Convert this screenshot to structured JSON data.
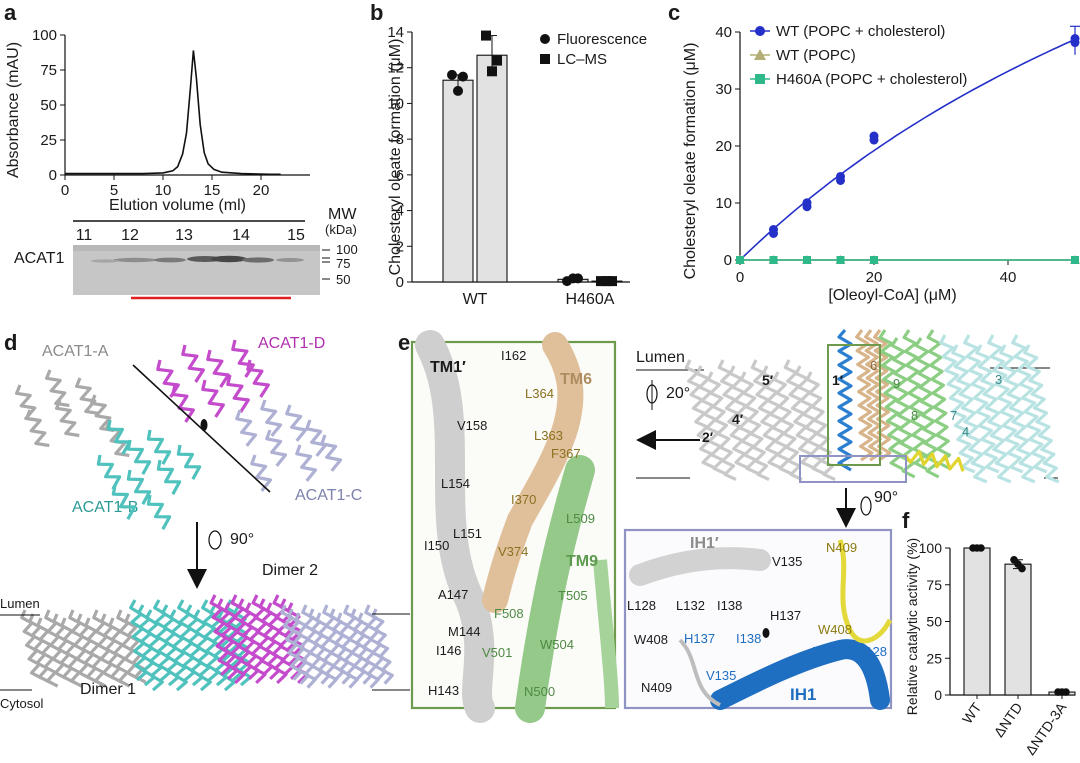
{
  "panels": {
    "a": {
      "letter": "a",
      "ylabel": "Absorbance (mAU)",
      "xlabel": "Elution volume (ml)",
      "gel_label": "ACAT1",
      "mw_title_1": "MW",
      "mw_title_2": "(kDa)",
      "mw_marks": [
        "100",
        "75",
        "50"
      ],
      "fractions": [
        "11",
        "12",
        "13",
        "14",
        "15"
      ]
    },
    "b": {
      "letter": "b"
    },
    "c": {
      "letter": "c"
    },
    "d": {
      "letter": "d",
      "labels": [
        "ACAT1-A",
        "ACAT1-D",
        "ACAT1-B",
        "ACAT1-C",
        "Dimer 2",
        "Dimer 1",
        "Lumen",
        "Cytosol"
      ],
      "rotation": "90°"
    },
    "e": {
      "letter": "e",
      "box1": {
        "titles": [
          "TM1′",
          "TM6",
          "TM9"
        ],
        "residues_gray": [
          "I162",
          "V158",
          "L154",
          "L151",
          "I150",
          "A147",
          "M144",
          "I146",
          "H143"
        ],
        "residues_tan": [
          "L364",
          "L363",
          "F367",
          "I370",
          "V374"
        ],
        "residues_green": [
          "L509",
          "T505",
          "F508",
          "V501",
          "W504",
          "N500"
        ]
      },
      "overview": {
        "lumen": "Lumen",
        "rotation": "20°",
        "helix_numbers": [
          "5′",
          "1′",
          "4′",
          "2′",
          "6",
          "9",
          "8",
          "7",
          "3",
          "4"
        ]
      },
      "box2": {
        "rotation": "90°",
        "titles": [
          "IH1′",
          "IH1"
        ],
        "residues_gray": [
          "V135",
          "L128",
          "L132",
          "I138",
          "H137",
          "W408",
          "N409"
        ],
        "residues_yellow": [
          "N409",
          "W408"
        ],
        "residues_blue": [
          "H137",
          "I138",
          "L132",
          "L128",
          "V135"
        ]
      }
    },
    "f": {
      "letter": "f"
    }
  },
  "chart_data": [
    {
      "id": "a",
      "type": "line",
      "title": "",
      "xlabel": "Elution volume (ml)",
      "ylabel": "Absorbance (mAU)",
      "xlim": [
        0,
        25
      ],
      "ylim": [
        0,
        100
      ],
      "xticks": [
        "0",
        "5",
        "10",
        "15",
        "20"
      ],
      "yticks": [
        "0",
        "25",
        "50",
        "75",
        "100"
      ],
      "series": [
        {
          "x": [
            0,
            8,
            10,
            11,
            11.5,
            12,
            12.4,
            12.8,
            13.1,
            13.4,
            13.8,
            14.2,
            14.6,
            15.2,
            16,
            18,
            21,
            22
          ],
          "y": [
            1,
            1,
            1.5,
            3,
            6,
            15,
            30,
            62,
            89,
            70,
            36,
            16,
            8,
            4,
            2,
            1,
            0.5,
            0.5
          ]
        }
      ]
    },
    {
      "id": "b",
      "type": "bar",
      "title": "",
      "xlabel": "",
      "ylabel": "Cholesteryl oleate formation (μM)",
      "ylim": [
        0,
        14
      ],
      "yticks": [
        "0",
        "2",
        "4",
        "6",
        "8",
        "10",
        "12",
        "14"
      ],
      "groups": [
        "WT",
        "H460A"
      ],
      "legend": "top-right",
      "series": [
        {
          "name": "Fluorescence",
          "marker": "circle",
          "values": [
            11.3,
            0.15
          ],
          "points": [
            [
              11.6,
              11.5,
              10.7
            ],
            [
              0.05,
              0.2,
              0.2
            ]
          ]
        },
        {
          "name": "LC–MS",
          "marker": "square",
          "values": [
            12.7,
            0.05
          ],
          "points": [
            [
              13.8,
              12.4,
              11.8
            ],
            [
              0.05,
              0.05,
              0.05
            ]
          ]
        }
      ]
    },
    {
      "id": "c",
      "type": "scatter",
      "title": "",
      "xlabel": "[Oleoyl-CoA] (μM)",
      "ylabel": "Cholesteryl oleate formation (μM)",
      "xlim": [
        0,
        50
      ],
      "ylim": [
        0,
        40
      ],
      "xticks": [
        "0",
        "20",
        "40"
      ],
      "yticks": [
        "0",
        "10",
        "20",
        "30",
        "40"
      ],
      "legend": "top",
      "series": [
        {
          "name": "WT (POPC + cholesterol)",
          "color": "#2430c8",
          "marker": "circle",
          "x": [
            5,
            10,
            15,
            20,
            50
          ],
          "y": [
            5,
            9.7,
            14.3,
            21.4,
            38.5
          ],
          "fit": {
            "vmax": 120,
            "km": 105
          }
        },
        {
          "name": "WT (POPC)",
          "color": "#b4ad76",
          "marker": "triangle",
          "x": [
            0,
            5,
            10,
            15,
            20,
            50
          ],
          "y": [
            0,
            0,
            0,
            0,
            0,
            0
          ]
        },
        {
          "name": "H460A (POPC + cholesterol)",
          "color": "#2fb88a",
          "marker": "square",
          "x": [
            0,
            5,
            10,
            15,
            20,
            50
          ],
          "y": [
            0,
            0,
            0,
            0,
            0,
            0
          ]
        }
      ]
    },
    {
      "id": "f",
      "type": "bar",
      "title": "",
      "xlabel": "",
      "ylabel": "Relative catalytic activity (%)",
      "ylim": [
        0,
        100
      ],
      "yticks": [
        "0",
        "25",
        "50",
        "75",
        "100"
      ],
      "categories": [
        "WT",
        "ΔNTD",
        "ΔNTD-3A"
      ],
      "values": [
        100,
        89,
        2
      ],
      "points": [
        [
          100,
          100,
          100
        ],
        [
          92,
          86,
          89
        ],
        [
          2,
          2,
          2
        ]
      ]
    }
  ]
}
